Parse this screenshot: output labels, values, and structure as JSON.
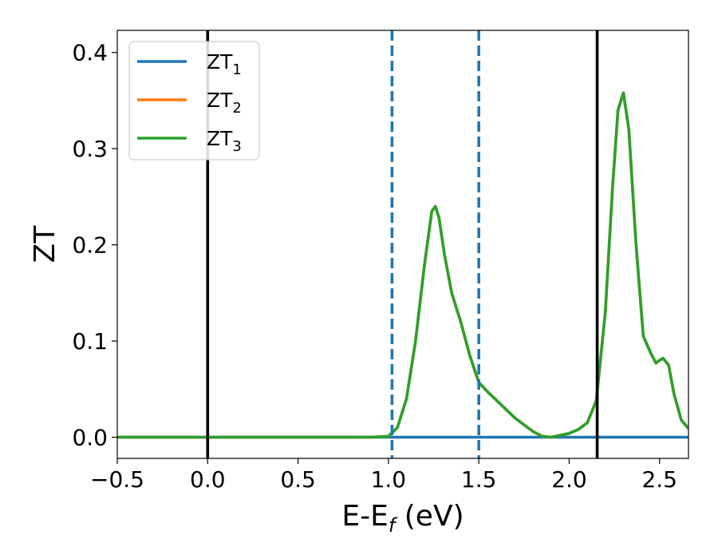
{
  "chart_data": {
    "type": "line",
    "xlabel": "E-E",
    "xlabel_sub": "f",
    "xlabel_unit": " (eV)",
    "ylabel": "ZT",
    "xlim": [
      -0.5,
      2.66
    ],
    "ylim": [
      -0.022,
      0.423
    ],
    "xticks": [
      -0.5,
      0.0,
      0.5,
      1.0,
      1.5,
      2.0,
      2.5
    ],
    "xtick_labels": [
      "−0.5",
      "0.0",
      "0.5",
      "1.0",
      "1.5",
      "2.0",
      "2.5"
    ],
    "yticks": [
      0.0,
      0.1,
      0.2,
      0.3,
      0.4
    ],
    "ytick_labels": [
      "0.0",
      "0.1",
      "0.2",
      "0.3",
      "0.4"
    ],
    "grid": false,
    "legend_position": "top-left",
    "series": [
      {
        "name": "ZT1",
        "label_main": "ZT",
        "label_sub": "1",
        "color": "#1f77b4",
        "x": [
          -0.5,
          2.66
        ],
        "y": [
          0.0,
          0.0
        ]
      },
      {
        "name": "ZT2",
        "label_main": "ZT",
        "label_sub": "2",
        "color": "#ff7f0e",
        "x": [
          -0.5,
          0.9,
          1.0,
          1.05,
          1.1,
          1.15,
          1.2,
          1.24,
          1.26,
          1.28,
          1.31,
          1.35,
          1.4,
          1.45,
          1.5,
          1.55,
          1.6,
          1.7,
          1.8,
          1.85,
          1.9,
          1.95,
          2.0,
          2.05,
          2.1,
          2.15,
          2.2,
          2.24,
          2.27,
          2.3,
          2.33,
          2.37,
          2.41,
          2.45,
          2.48,
          2.5,
          2.52,
          2.55,
          2.58,
          2.62,
          2.66
        ],
        "y": [
          0.0,
          0.0,
          0.001,
          0.01,
          0.04,
          0.1,
          0.18,
          0.235,
          0.24,
          0.228,
          0.19,
          0.15,
          0.12,
          0.085,
          0.057,
          0.047,
          0.038,
          0.02,
          0.006,
          0.001,
          0.0,
          0.002,
          0.004,
          0.008,
          0.015,
          0.038,
          0.13,
          0.26,
          0.34,
          0.358,
          0.32,
          0.2,
          0.105,
          0.088,
          0.077,
          0.08,
          0.082,
          0.075,
          0.045,
          0.018,
          0.009
        ]
      },
      {
        "name": "ZT3",
        "label_main": "ZT",
        "label_sub": "3",
        "color": "#2ca02c",
        "x": [
          -0.5,
          0.9,
          1.0,
          1.05,
          1.1,
          1.15,
          1.2,
          1.24,
          1.26,
          1.28,
          1.31,
          1.35,
          1.4,
          1.45,
          1.5,
          1.55,
          1.6,
          1.7,
          1.8,
          1.85,
          1.9,
          1.95,
          2.0,
          2.05,
          2.1,
          2.15,
          2.2,
          2.24,
          2.27,
          2.3,
          2.33,
          2.37,
          2.41,
          2.45,
          2.48,
          2.5,
          2.52,
          2.55,
          2.58,
          2.62,
          2.66
        ],
        "y": [
          0.0,
          0.0,
          0.001,
          0.01,
          0.04,
          0.1,
          0.18,
          0.235,
          0.24,
          0.228,
          0.19,
          0.15,
          0.12,
          0.085,
          0.057,
          0.047,
          0.038,
          0.02,
          0.006,
          0.001,
          0.0,
          0.002,
          0.004,
          0.008,
          0.015,
          0.038,
          0.13,
          0.26,
          0.34,
          0.358,
          0.32,
          0.2,
          0.105,
          0.088,
          0.077,
          0.08,
          0.082,
          0.075,
          0.045,
          0.018,
          0.009
        ]
      }
    ],
    "vlines": [
      {
        "x": 0.0,
        "style": "solid",
        "color": "#000000"
      },
      {
        "x": 1.02,
        "style": "dashed",
        "color": "#1f77b4"
      },
      {
        "x": 1.5,
        "style": "dashed",
        "color": "#1f77b4"
      },
      {
        "x": 2.155,
        "style": "solid",
        "color": "#000000"
      }
    ]
  }
}
